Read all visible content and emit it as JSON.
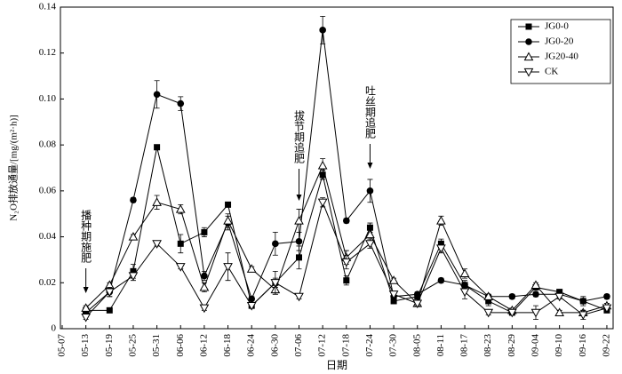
{
  "chart_data": {
    "type": "line",
    "y_label": "N₂O排放通量/[mg/(m²·h)]",
    "x_label": "日期",
    "categories": [
      "05-07",
      "05-13",
      "05-19",
      "05-25",
      "05-31",
      "06-06",
      "06-12",
      "06-18",
      "06-24",
      "06-30",
      "07-06",
      "07-12",
      "07-18",
      "07-24",
      "07-30",
      "08-05",
      "08-11",
      "08-17",
      "08-23",
      "08-29",
      "09-04",
      "09-10",
      "09-16",
      "09-22"
    ],
    "series": [
      {
        "name": "JG0-0",
        "color": "#000000",
        "marker": "square",
        "values": [
          null,
          0.008,
          0.008,
          0.025,
          0.079,
          0.037,
          0.042,
          0.054,
          0.01,
          0.02,
          0.031,
          0.067,
          0.021,
          0.044,
          0.012,
          0.014,
          0.037,
          0.019,
          0.012,
          0.007,
          0.018,
          0.016,
          0.012,
          0.008
        ],
        "errors": [
          null,
          0.001,
          0.001,
          0.003,
          0.001,
          0.004,
          0.002,
          0.001,
          0.001,
          0.002,
          0.005,
          0.002,
          0.002,
          0.002,
          0.001,
          0.001,
          0.002,
          0.001,
          0.002,
          0.001,
          0.001,
          0.001,
          0.002,
          0.001
        ]
      },
      {
        "name": "JG0-20",
        "color": "#000000",
        "marker": "circle",
        "values": [
          null,
          0.007,
          0.016,
          0.056,
          0.102,
          0.098,
          0.023,
          0.046,
          0.013,
          0.037,
          0.038,
          0.13,
          0.047,
          0.06,
          0.014,
          0.015,
          0.021,
          0.019,
          0.014,
          0.014,
          0.015,
          0.015,
          0.012,
          0.014
        ],
        "errors": [
          null,
          0.001,
          0.002,
          0.001,
          0.006,
          0.003,
          0.002,
          0.003,
          0.001,
          0.005,
          0.004,
          0.006,
          0.001,
          0.005,
          0.002,
          0.001,
          0.001,
          0.002,
          0.001,
          0.001,
          0.001,
          0.001,
          0.001,
          0.001
        ]
      },
      {
        "name": "JG20-40",
        "color": "#000000",
        "marker": "triangle-up",
        "values": [
          null,
          0.009,
          0.019,
          0.04,
          0.055,
          0.052,
          0.018,
          0.047,
          0.026,
          0.017,
          0.047,
          0.071,
          0.031,
          0.041,
          0.021,
          0.011,
          0.047,
          0.024,
          0.014,
          0.008,
          0.019,
          0.007,
          0.007,
          0.01
        ],
        "errors": [
          null,
          0.001,
          0.001,
          0.001,
          0.003,
          0.002,
          0.002,
          0.003,
          0.001,
          0.002,
          0.005,
          0.003,
          0.003,
          0.002,
          0.001,
          0.001,
          0.002,
          0.002,
          0.001,
          0.001,
          0.001,
          0.001,
          0.001,
          0.001
        ]
      },
      {
        "name": "CK",
        "color": "#000000",
        "marker": "triangle-down",
        "values": [
          null,
          0.005,
          0.016,
          0.023,
          0.037,
          0.027,
          0.009,
          0.027,
          0.01,
          0.02,
          0.014,
          0.055,
          0.029,
          0.037,
          0.015,
          0.011,
          0.035,
          0.016,
          0.007,
          0.007,
          0.007,
          0.014,
          0.006,
          0.009
        ],
        "errors": [
          null,
          0.001,
          0.002,
          0.002,
          0.001,
          0.001,
          0.001,
          0.006,
          0.001,
          0.005,
          0.001,
          0.002,
          0.003,
          0.002,
          0.001,
          0.001,
          0.002,
          0.003,
          0.001,
          0.001,
          0.003,
          0.001,
          0.002,
          0.001
        ]
      }
    ],
    "annotations": [
      "播种期施肥",
      "拔节期追肥",
      "吐丝期追肥"
    ],
    "ylim": [
      0,
      0.14
    ],
    "yticks": [
      0,
      0.02,
      0.04,
      0.06,
      0.08,
      {
        "value": 0.1,
        "label": "0.10"
      },
      0.12,
      0.14
    ],
    "grid": false,
    "legend": "upper right"
  }
}
